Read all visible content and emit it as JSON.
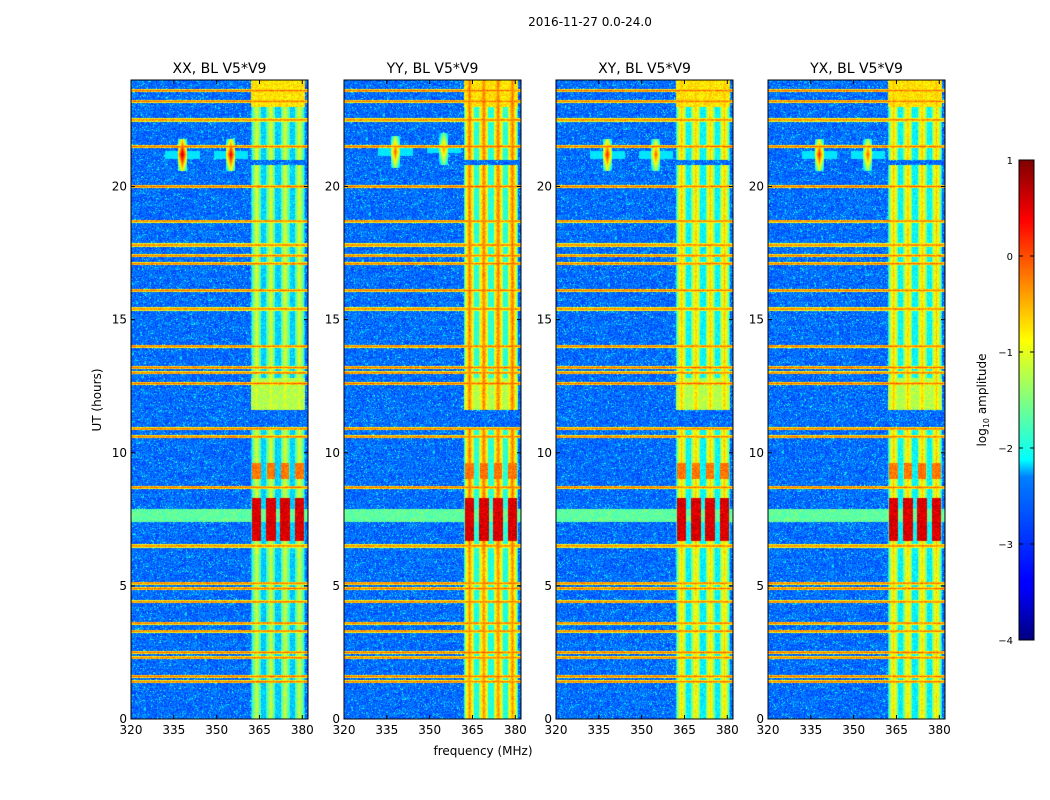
{
  "figure": {
    "suptitle": "2016-11-27 0.0-24.0"
  },
  "chart_data": {
    "type": "heatmap",
    "xlabel": "frequency (MHz)",
    "ylabel": "UT (hours)",
    "xlim": [
      320,
      382
    ],
    "ylim": [
      0,
      24
    ],
    "xticks": [
      320,
      335,
      350,
      365,
      380
    ],
    "yticks": [
      0,
      5,
      10,
      15,
      20
    ],
    "panels": [
      {
        "title": "XX, BL V5*V9",
        "strength": 1.0,
        "rfi_bursts": [
          {
            "freq": 338.0,
            "ut": 21.2,
            "scale": 1.0
          },
          {
            "freq": 355.0,
            "ut": 21.2,
            "scale": 0.9
          }
        ]
      },
      {
        "title": "YY, BL V5*V9",
        "strength": 1.3,
        "rfi_bursts": [
          {
            "freq": 338.0,
            "ut": 21.3,
            "scale": 0.6
          },
          {
            "freq": 355.0,
            "ut": 21.4,
            "scale": 0.45
          }
        ]
      },
      {
        "title": "XY, BL V5*V9",
        "strength": 1.15,
        "rfi_bursts": [
          {
            "freq": 338.0,
            "ut": 21.2,
            "scale": 0.75
          },
          {
            "freq": 355.0,
            "ut": 21.2,
            "scale": 0.6
          }
        ]
      },
      {
        "title": "YX, BL V5*V9",
        "strength": 1.15,
        "rfi_bursts": [
          {
            "freq": 338.0,
            "ut": 21.2,
            "scale": 0.75
          },
          {
            "freq": 355.0,
            "ut": 21.2,
            "scale": 0.6
          }
        ]
      }
    ],
    "rfi_band_mhz": [
      362,
      381
    ],
    "rfi_channels_mhz": [
      364,
      369,
      374,
      379
    ],
    "hot_ut_range_hours": [
      6.7,
      8.3
    ],
    "horizontal_rfi_ut_hours": [
      1.4,
      1.6,
      2.3,
      2.5,
      3.3,
      3.6,
      4.4,
      4.9,
      5.1,
      6.5,
      8.7,
      10.6,
      10.9,
      12.6,
      13.0,
      13.2,
      14.0,
      15.4,
      16.1,
      17.1,
      17.4,
      17.8,
      18.7,
      20.0,
      21.5,
      22.5,
      23.2,
      23.6
    ],
    "colorbar": {
      "label_prefix": "log",
      "label_sub": "10",
      "label_suffix": " amplitude",
      "min": -4,
      "max": 1,
      "ticks": [
        1,
        0,
        -1,
        -2,
        -3,
        -4
      ],
      "ticklabels": [
        "1",
        "0",
        "−1",
        "−2",
        "−3",
        "−4"
      ],
      "colormap": "jet"
    }
  }
}
